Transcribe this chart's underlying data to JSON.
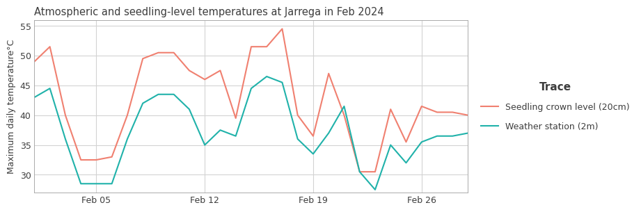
{
  "title": "Atmospheric and seedling-level temperatures at Jarrega in Feb 2024",
  "ylabel": "Maximum daily temperature°C",
  "ylim": [
    27,
    56
  ],
  "yticks": [
    30,
    35,
    40,
    45,
    50,
    55
  ],
  "background_color": "#ffffff",
  "plot_background": "#ffffff",
  "grid_color": "#d3d3d3",
  "title_color": "#3d3d3d",
  "label_color": "#3d3d3d",
  "seedling_color": "#f08070",
  "weather_color": "#20b2aa",
  "legend_title": "Trace",
  "legend_label_seedling": "Seedling crown level (20cm)",
  "legend_label_weather": "Weather station (2m)",
  "days": [
    1,
    2,
    3,
    4,
    5,
    6,
    7,
    8,
    9,
    10,
    11,
    12,
    13,
    14,
    15,
    16,
    17,
    18,
    19,
    20,
    21,
    22,
    23,
    24,
    25,
    26,
    27,
    28,
    29
  ],
  "seedling": [
    49.0,
    51.5,
    40.0,
    32.5,
    32.5,
    33.0,
    40.0,
    49.5,
    50.5,
    50.5,
    47.5,
    46.0,
    47.5,
    39.5,
    51.5,
    51.5,
    54.5,
    40.0,
    36.5,
    47.0,
    40.0,
    30.5,
    30.5,
    41.0,
    35.5,
    41.5,
    40.5,
    40.5,
    40.0
  ],
  "weather": [
    43.0,
    44.5,
    36.0,
    28.5,
    28.5,
    28.5,
    36.0,
    42.0,
    43.5,
    43.5,
    41.0,
    35.0,
    37.5,
    36.5,
    44.5,
    46.5,
    45.5,
    36.0,
    33.5,
    37.0,
    41.5,
    30.5,
    27.5,
    35.0,
    32.0,
    35.5,
    36.5,
    36.5,
    37.0
  ],
  "xtick_positions": [
    5,
    12,
    19,
    26
  ],
  "xtick_labels": [
    "Feb 05",
    "Feb 12",
    "Feb 19",
    "Feb 26"
  ],
  "line_width": 1.5
}
